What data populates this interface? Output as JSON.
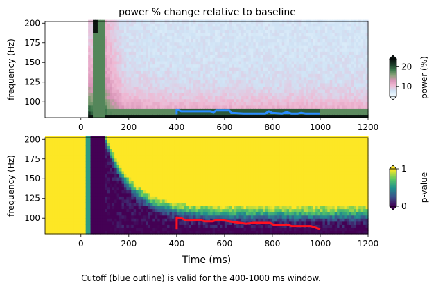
{
  "chart_data": [
    {
      "type": "heatmap",
      "title": "power % change relative to baseline",
      "xlabel": "",
      "ylabel": "frequency (Hz)",
      "xlim": [
        -150,
        1200
      ],
      "ylim": [
        80,
        202
      ],
      "x_ticks": [
        0,
        200,
        400,
        600,
        800,
        1000,
        1200
      ],
      "y_ticks": [
        100,
        125,
        150,
        175,
        200
      ],
      "colorbar": {
        "label": "power (%)",
        "ticks": [
          10,
          20
        ],
        "range": [
          5,
          24
        ],
        "colors": [
          "#f1faff",
          "#cfe3f5",
          "#efb8d3",
          "#d995b8",
          "#8aa37a",
          "#3e7a4d",
          "#1c3d2a",
          "#0a1410"
        ]
      },
      "no_data_before_ms": 30,
      "dark_band_ms": [
        50,
        100
      ],
      "cutoff_outline": {
        "color": "#2a8cff",
        "points": [
          [
            400,
            84
          ],
          [
            400,
            90
          ],
          [
            420,
            88
          ],
          [
            540,
            88
          ],
          [
            555,
            87
          ],
          [
            565,
            89
          ],
          [
            620,
            89
          ],
          [
            630,
            86
          ],
          [
            680,
            85
          ],
          [
            770,
            85
          ],
          [
            785,
            88
          ],
          [
            800,
            86
          ],
          [
            840,
            85
          ],
          [
            860,
            87
          ],
          [
            880,
            85
          ],
          [
            905,
            85
          ],
          [
            920,
            86
          ],
          [
            940,
            85
          ],
          [
            1000,
            85
          ]
        ]
      },
      "band_high_power": {
        "x_range": [
          400,
          1000
        ],
        "color": "#1f6b3e"
      }
    },
    {
      "type": "heatmap",
      "title": "",
      "xlabel": "Time (ms)",
      "ylabel": "frequency (Hz)",
      "xlim": [
        -150,
        1200
      ],
      "ylim": [
        80,
        202
      ],
      "x_ticks": [
        0,
        200,
        400,
        600,
        800,
        1000,
        1200
      ],
      "y_ticks": [
        100,
        125,
        150,
        175,
        200
      ],
      "colorbar": {
        "label": "p-value",
        "ticks": [
          0,
          1
        ],
        "range": [
          0,
          1
        ],
        "colors": [
          "#440154",
          "#3b528b",
          "#21918c",
          "#5ec962",
          "#fde725"
        ]
      },
      "significance_outline": {
        "color": "#ff1020",
        "points": [
          [
            400,
            86
          ],
          [
            400,
            101
          ],
          [
            420,
            100
          ],
          [
            440,
            97
          ],
          [
            470,
            97
          ],
          [
            490,
            98
          ],
          [
            520,
            96
          ],
          [
            550,
            96
          ],
          [
            570,
            98
          ],
          [
            600,
            97
          ],
          [
            640,
            95
          ],
          [
            690,
            93
          ],
          [
            720,
            94
          ],
          [
            790,
            94
          ],
          [
            810,
            91
          ],
          [
            860,
            92
          ],
          [
            880,
            90
          ],
          [
            960,
            90
          ],
          [
            1000,
            86
          ]
        ]
      }
    }
  ],
  "caption": "Cutoff (blue outline) is valid for the 400-1000 ms window."
}
